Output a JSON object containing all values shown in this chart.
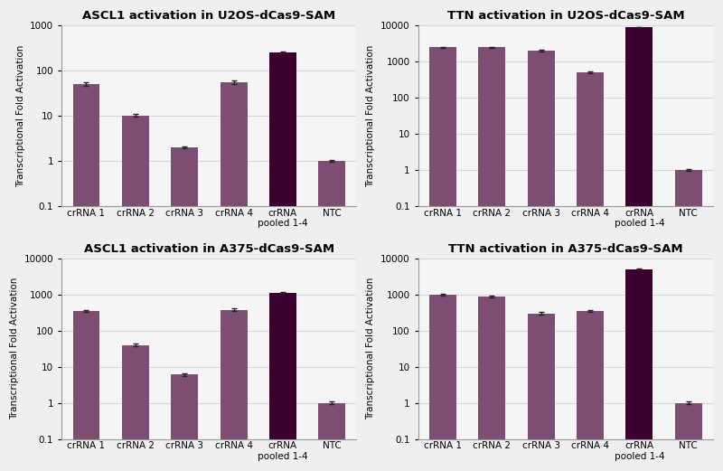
{
  "panels": [
    {
      "title": "ASCL1 activation in U2OS-dCas9-SAM",
      "ylim": [
        0.1,
        1000
      ],
      "yticks": [
        0.1,
        1,
        10,
        100,
        1000
      ],
      "values": [
        50,
        10,
        2.0,
        55,
        250,
        1.0
      ],
      "errors": [
        4,
        0.7,
        0.1,
        4,
        15,
        0.05
      ],
      "bar_colors": [
        "#7D4E72",
        "#7D4E72",
        "#7D4E72",
        "#7D4E72",
        "#3B0030",
        "#7D4E72"
      ]
    },
    {
      "title": "TTN activation in U2OS-dCas9-SAM",
      "ylim": [
        0.1,
        10000
      ],
      "yticks": [
        0.1,
        1,
        10,
        100,
        1000,
        10000
      ],
      "values": [
        2500,
        2500,
        2000,
        500,
        9000,
        1.0
      ],
      "errors": [
        80,
        80,
        70,
        30,
        150,
        0.05
      ],
      "bar_colors": [
        "#7D4E72",
        "#7D4E72",
        "#7D4E72",
        "#7D4E72",
        "#3B0030",
        "#7D4E72"
      ]
    },
    {
      "title": "ASCL1 activation in A375-dCas9-SAM",
      "ylim": [
        0.1,
        10000
      ],
      "yticks": [
        0.1,
        1,
        10,
        100,
        1000,
        10000
      ],
      "values": [
        350,
        40,
        6,
        380,
        1100,
        1.0
      ],
      "errors": [
        20,
        3,
        0.4,
        25,
        60,
        0.08
      ],
      "bar_colors": [
        "#7D4E72",
        "#7D4E72",
        "#7D4E72",
        "#7D4E72",
        "#3B0030",
        "#7D4E72"
      ]
    },
    {
      "title": "TTN activation in A375-dCas9-SAM",
      "ylim": [
        0.1,
        10000
      ],
      "yticks": [
        0.1,
        1,
        10,
        100,
        1000,
        10000
      ],
      "values": [
        1000,
        900,
        300,
        350,
        5000,
        1.0
      ],
      "errors": [
        60,
        50,
        20,
        20,
        300,
        0.08
      ],
      "bar_colors": [
        "#7D4E72",
        "#7D4E72",
        "#7D4E72",
        "#7D4E72",
        "#3B0030",
        "#7D4E72"
      ]
    }
  ],
  "xticklabels": [
    "crRNA 1",
    "crRNA 2",
    "crRNA 3",
    "crRNA 4",
    "crRNA\npooled 1-4",
    "NTC"
  ],
  "ylabel": "Transcriptional Fold Activation",
  "bar_width": 0.55,
  "figure_bg": "#EFEFEF",
  "axes_bg": "#F5F5F5",
  "title_fontsize": 9.5,
  "label_fontsize": 7.5,
  "tick_fontsize": 7.5,
  "grid_color": "#D8D8D8"
}
